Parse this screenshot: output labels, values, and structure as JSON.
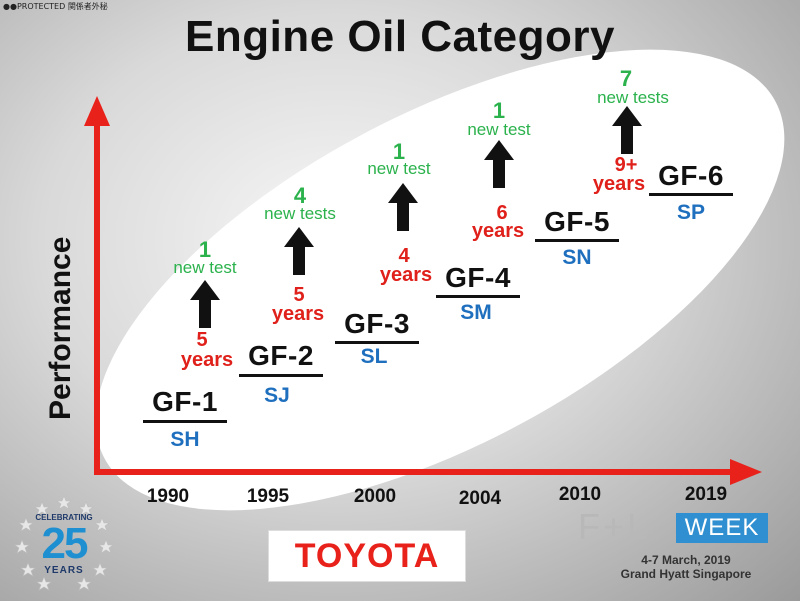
{
  "header": {
    "protected": "●●PROTECTED 関係者外秘",
    "title": "Engine Oil Category"
  },
  "axis": {
    "y_label": "Performance",
    "years": [
      "1990",
      "1995",
      "2000",
      "2004",
      "2010",
      "2019"
    ]
  },
  "categories": [
    {
      "ilsac": "GF-1",
      "api": "SH"
    },
    {
      "ilsac": "GF-2",
      "api": "SJ"
    },
    {
      "ilsac": "GF-3",
      "api": "SL"
    },
    {
      "ilsac": "GF-4",
      "api": "SM"
    },
    {
      "ilsac": "GF-5",
      "api": "SN"
    },
    {
      "ilsac": "GF-6",
      "api": "SP"
    }
  ],
  "transitions": [
    {
      "gap_num": "5",
      "gap_unit": "years",
      "tests_num": "1",
      "tests_label": "new test"
    },
    {
      "gap_num": "5",
      "gap_unit": "years",
      "tests_num": "4",
      "tests_label": "new tests"
    },
    {
      "gap_num": "4",
      "gap_unit": "years",
      "tests_num": "1",
      "tests_label": "new test"
    },
    {
      "gap_num": "6",
      "gap_unit": "years",
      "tests_num": "1",
      "tests_label": "new test"
    },
    {
      "gap_num": "9+",
      "gap_unit": "years",
      "tests_num": "7",
      "tests_label": "new tests"
    }
  ],
  "logos": {
    "celebrating": "CELEBRATING",
    "anniversary": "25",
    "years_word": "YEARS",
    "toyota": "TOYOTA",
    "fl_main": "F+L",
    "fl_week": "WEEK",
    "fl_dates": "4-7 March, 2019",
    "fl_venue": "Grand Hyatt Singapore"
  },
  "colors": {
    "arrow": "#e8221b",
    "years_text": "#e0201a",
    "tests_text": "#2bb24c",
    "api_text": "#1f6fbf",
    "fl_blue": "#2f8fd0"
  }
}
